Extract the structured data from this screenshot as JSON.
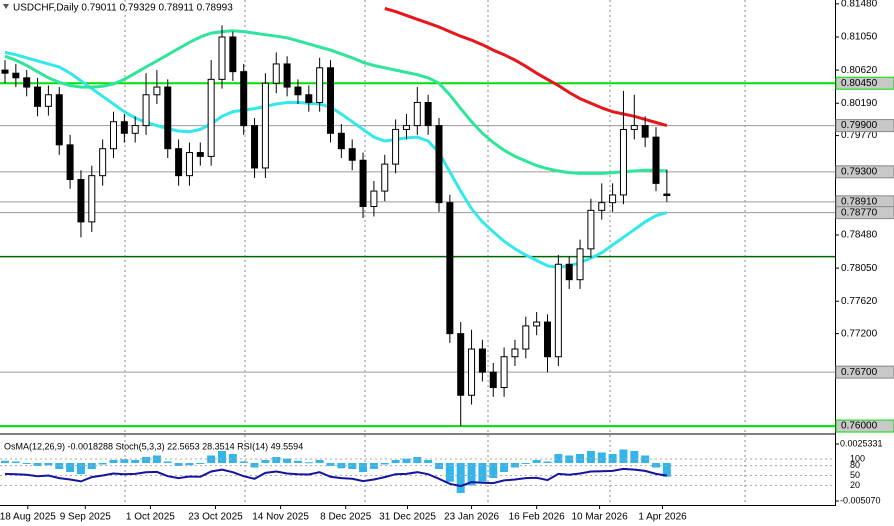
{
  "chart_data": {
    "type": "candlestick",
    "title": "USDCHF,Daily 0.79011 0.79329 0.78911 0.78993",
    "opens": [
      0.8062,
      0.8058,
      0.8052,
      0.804,
      0.8015,
      0.803,
      0.7965,
      0.792,
      0.7865,
      0.7925,
      0.796,
      0.7995,
      0.798,
      0.799,
      0.803,
      0.804,
      0.796,
      0.7925,
      0.7955,
      0.795,
      0.805,
      0.8105,
      0.806,
      0.799,
      0.7935,
      0.8045,
      0.807,
      0.804,
      0.803,
      0.802,
      0.8065,
      0.798,
      0.796,
      0.7945,
      0.7885,
      0.7905,
      0.794,
      0.7985,
      0.799,
      0.802,
      0.799,
      0.789,
      0.772,
      0.764,
      0.77,
      0.767,
      0.765,
      0.769,
      0.77,
      0.773,
      0.7735,
      0.769,
      0.781,
      0.779,
      0.783,
      0.788,
      0.789,
      0.79,
      0.7985,
      0.799,
      0.7975,
      0.79011
    ],
    "highs": [
      0.8075,
      0.807,
      0.8062,
      0.8052,
      0.8042,
      0.804,
      0.7978,
      0.7932,
      0.7938,
      0.7972,
      0.8008,
      0.8005,
      0.8002,
      0.8058,
      0.8062,
      0.805,
      0.7972,
      0.7968,
      0.7968,
      0.8075,
      0.812,
      0.8112,
      0.807,
      0.8,
      0.8058,
      0.8085,
      0.808,
      0.805,
      0.8042,
      0.8078,
      0.8075,
      0.7992,
      0.7972,
      0.7955,
      0.7918,
      0.7952,
      0.7998,
      0.8005,
      0.804,
      0.803,
      0.8,
      0.79,
      0.7735,
      0.7725,
      0.7712,
      0.7682,
      0.7702,
      0.7712,
      0.7742,
      0.7748,
      0.7745,
      0.7822,
      0.782,
      0.7842,
      0.7895,
      0.7915,
      0.7915,
      0.8035,
      0.803,
      0.8002,
      0.7988,
      0.79329
    ],
    "lows": [
      0.8045,
      0.804,
      0.8028,
      0.8002,
      0.8003,
      0.7952,
      0.7908,
      0.7845,
      0.7852,
      0.7912,
      0.7948,
      0.7968,
      0.7968,
      0.7978,
      0.8018,
      0.7948,
      0.7912,
      0.7912,
      0.7938,
      0.7938,
      0.8038,
      0.8048,
      0.7978,
      0.7922,
      0.7922,
      0.8032,
      0.8028,
      0.8018,
      0.8008,
      0.8008,
      0.7968,
      0.7948,
      0.7932,
      0.787,
      0.7872,
      0.7892,
      0.7928,
      0.7972,
      0.7978,
      0.7978,
      0.7878,
      0.7708,
      0.76,
      0.7628,
      0.7658,
      0.7638,
      0.7638,
      0.7678,
      0.7688,
      0.7718,
      0.767,
      0.7678,
      0.7778,
      0.7778,
      0.7818,
      0.7868,
      0.7878,
      0.7888,
      0.7972,
      0.7962,
      0.7905,
      0.78911
    ],
    "closes": [
      0.8058,
      0.8052,
      0.804,
      0.8015,
      0.803,
      0.7965,
      0.792,
      0.7865,
      0.7925,
      0.796,
      0.7995,
      0.798,
      0.799,
      0.803,
      0.804,
      0.796,
      0.7925,
      0.7955,
      0.795,
      0.805,
      0.8105,
      0.806,
      0.799,
      0.7935,
      0.8045,
      0.807,
      0.804,
      0.803,
      0.802,
      0.8065,
      0.798,
      0.796,
      0.7945,
      0.7885,
      0.7905,
      0.794,
      0.7985,
      0.799,
      0.802,
      0.799,
      0.789,
      0.772,
      0.764,
      0.77,
      0.767,
      0.765,
      0.769,
      0.77,
      0.773,
      0.7735,
      0.769,
      0.781,
      0.779,
      0.783,
      0.788,
      0.789,
      0.79,
      0.7985,
      0.799,
      0.7975,
      0.7915,
      0.78993
    ],
    "series": [
      {
        "color": "#33e8ea",
        "values": [
          0.8085,
          0.8082,
          0.8078,
          0.8074,
          0.807,
          0.8066,
          0.8058,
          0.8048,
          0.8038,
          0.8028,
          0.8018,
          0.8008,
          0.8,
          0.7994,
          0.799,
          0.7986,
          0.7983,
          0.7982,
          0.7985,
          0.7992,
          0.8002,
          0.8008,
          0.801,
          0.8012,
          0.8015,
          0.8018,
          0.802,
          0.802,
          0.8019,
          0.8018,
          0.8014,
          0.8005,
          0.7995,
          0.7985,
          0.7975,
          0.797,
          0.7972,
          0.7974,
          0.7975,
          0.797,
          0.7955,
          0.793,
          0.7905,
          0.7882,
          0.7865,
          0.7852,
          0.784,
          0.783,
          0.7822,
          0.7815,
          0.7808,
          0.7806,
          0.7808,
          0.7812,
          0.7818,
          0.7825,
          0.7835,
          0.7845,
          0.7855,
          0.7865,
          0.7873,
          0.7877
        ]
      },
      {
        "color": "#2ee59a",
        "values": [
          0.808,
          0.8075,
          0.8068,
          0.806,
          0.8052,
          0.8046,
          0.8042,
          0.804,
          0.804,
          0.8041,
          0.8044,
          0.805,
          0.8058,
          0.8066,
          0.8074,
          0.8082,
          0.809,
          0.8098,
          0.8105,
          0.811,
          0.8112,
          0.8113,
          0.8112,
          0.811,
          0.8108,
          0.8106,
          0.8104,
          0.81,
          0.8096,
          0.8092,
          0.8088,
          0.8083,
          0.8078,
          0.8072,
          0.8068,
          0.8065,
          0.8062,
          0.8059,
          0.8056,
          0.8052,
          0.8045,
          0.803,
          0.8012,
          0.7995,
          0.798,
          0.7968,
          0.7958,
          0.795,
          0.7944,
          0.7938,
          0.7934,
          0.7931,
          0.7929,
          0.7928,
          0.7928,
          0.7928,
          0.7929,
          0.793,
          0.7931,
          0.7932,
          0.7932,
          0.7931
        ]
      },
      {
        "color": "#e8151b",
        "values": [
          null,
          null,
          null,
          null,
          null,
          null,
          null,
          null,
          null,
          null,
          null,
          null,
          null,
          null,
          null,
          null,
          null,
          null,
          null,
          null,
          null,
          null,
          null,
          null,
          null,
          null,
          null,
          null,
          null,
          null,
          null,
          null,
          null,
          null,
          null,
          0.8142,
          0.8138,
          0.8133,
          0.8128,
          0.8123,
          0.8118,
          0.8112,
          0.8106,
          0.8101,
          0.8095,
          0.8088,
          0.8082,
          0.8075,
          0.8067,
          0.8058,
          0.805,
          0.8042,
          0.8033,
          0.8025,
          0.8019,
          0.8013,
          0.8008,
          0.8005,
          0.8002,
          0.7998,
          0.7994,
          0.799
        ]
      }
    ],
    "ylim": [
      0.7591,
      0.8153
    ],
    "yticks": [
      {
        "value": 0.8148,
        "label": "0.81480"
      },
      {
        "value": 0.8105,
        "label": "0.81050"
      },
      {
        "value": 0.8062,
        "label": "0.80620"
      },
      {
        "value": 0.8019,
        "label": "0.80190"
      },
      {
        "value": 0.7977,
        "label": "0.79770"
      },
      {
        "value": 0.7848,
        "label": "0.78480"
      },
      {
        "value": 0.7805,
        "label": "0.78050"
      },
      {
        "value": 0.7762,
        "label": "0.77620"
      },
      {
        "value": 0.772,
        "label": "0.77200"
      }
    ],
    "levels": [
      {
        "value": 0.8045,
        "label": "0.80450",
        "color": "#00e000"
      },
      {
        "value": 0.799,
        "label": "0.79900",
        "color": "#9a9a9a"
      },
      {
        "value": 0.793,
        "label": "0.79300",
        "color": "#9a9a9a"
      },
      {
        "value": 0.7891,
        "label": "0.78910",
        "color": "#9a9a9a"
      },
      {
        "value": 0.7877,
        "label": "0.78770",
        "color": "#9a9a9a"
      },
      {
        "value": 0.767,
        "label": "0.76700",
        "color": "#9a9a9a"
      },
      {
        "value": 0.76,
        "label": "0.76000",
        "color": "#00e000"
      }
    ],
    "lines": [
      {
        "value": 0.782,
        "color": "#006400"
      }
    ],
    "xticks": [
      {
        "value": 2.1,
        "label": "18 Aug 2025"
      },
      {
        "value": 7.4,
        "label": "9 Sep 2025"
      },
      {
        "value": 13.4,
        "label": "1 Oct 2025"
      },
      {
        "value": 19.4,
        "label": "23 Oct 2025"
      },
      {
        "value": 25.4,
        "label": "14 Nov 2025"
      },
      {
        "value": 31.4,
        "label": "8 Dec 2025"
      },
      {
        "value": 37.1,
        "label": "31 Dec 2025"
      },
      {
        "value": 43,
        "label": "23 Jan 2026"
      },
      {
        "value": 49,
        "label": "16 Feb 2026"
      },
      {
        "value": 54.8,
        "label": "10 Mar 2026"
      },
      {
        "value": 60.6,
        "label": "1 Apr 2026"
      }
    ],
    "indicator": {
      "label": "OsMA(12,26,9) -0.0018288 Stoch(5,3,3) 22.5653 28.3514 RSI(14) 49.5594",
      "osma": [
        0.0003,
        0.0002,
        0,
        -0.0004,
        -0.0003,
        -0.0008,
        -0.0012,
        -0.0015,
        -0.0008,
        -0.0002,
        0.0004,
        0.0005,
        0.0004,
        0.0008,
        0.001,
        0.0002,
        -0.0004,
        -0.0003,
        -0.0001,
        0.001,
        0.0016,
        0.0012,
        0.0002,
        -0.0006,
        0.0004,
        0.0008,
        0.0006,
        0.0003,
        0.0001,
        0.0004,
        -0.0004,
        -0.0007,
        -0.0008,
        -0.0012,
        -0.0008,
        -0.0002,
        0.0004,
        0.0006,
        0.0008,
        0.0004,
        -0.0008,
        -0.0025,
        -0.004,
        -0.003,
        -0.0025,
        -0.002,
        -0.0012,
        -0.0006,
        0,
        0.0004,
        0.0002,
        0.0012,
        0.001,
        0.0012,
        0.0016,
        0.0014,
        0.0012,
        0.0018,
        0.0016,
        0.001,
        -0.0006,
        -0.0018288
      ],
      "osma_color": "#33b5ea",
      "rsi": [
        55,
        54,
        52,
        48,
        50,
        42,
        38,
        32,
        45,
        50,
        56,
        54,
        55,
        60,
        61,
        48,
        42,
        47,
        46,
        62,
        68,
        60,
        48,
        40,
        58,
        62,
        56,
        54,
        53,
        60,
        46,
        42,
        40,
        33,
        38,
        45,
        54,
        55,
        60,
        54,
        40,
        25,
        18,
        30,
        28,
        27,
        35,
        38,
        42,
        43,
        36,
        55,
        52,
        56,
        62,
        63,
        64,
        70,
        68,
        64,
        55,
        49.5594
      ],
      "rsi_color": "#1414a0",
      "osma_lim": [
        -0.00507,
        0.0025331
      ],
      "osma_ticks": [
        0.0025331,
        {
          "value": -0.00507,
          "label": "-0.005070"
        }
      ],
      "rsi_lim": [
        0,
        100
      ],
      "rsi_ticks": [
        100,
        80,
        50,
        20
      ]
    }
  }
}
